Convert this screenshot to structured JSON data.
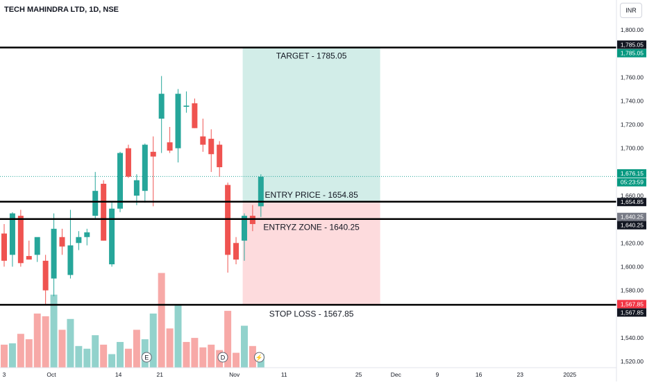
{
  "header": {
    "symbol": "TECH MAHINDRA LTD, 1D, NSE",
    "currency": "INR"
  },
  "annotations": {
    "target": "TARGET - 1785.05",
    "entry": "ENTRY PRICE - 1654.85",
    "entry_zone": "ENTRYZ ZONE - 1640.25",
    "stop_loss": "STOP LOSS - 1567.85"
  },
  "price_badges": [
    {
      "label": "1,785.05",
      "price": 1787.5,
      "bg": "#131722",
      "fg": "#ffffff"
    },
    {
      "label": "1,785.05",
      "price": 1780.3,
      "bg": "#089981",
      "fg": "#ffffff"
    },
    {
      "label": "1,676.15",
      "price": 1678.8,
      "bg": "#089981",
      "fg": "#ffffff"
    },
    {
      "label": "05:23:59",
      "price": 1671.3,
      "bg": "#089981",
      "fg": "#ffffff"
    },
    {
      "label": "1,654.85",
      "price": 1654.6,
      "bg": "#131722",
      "fg": "#ffffff"
    },
    {
      "label": "1,640.25",
      "price": 1642.0,
      "bg": "#787b86",
      "fg": "#ffffff"
    },
    {
      "label": "1,640.25",
      "price": 1635.0,
      "bg": "#131722",
      "fg": "#ffffff"
    },
    {
      "label": "1,567.85",
      "price": 1568.4,
      "bg": "#f23645",
      "fg": "#ffffff"
    },
    {
      "label": "1,567.85",
      "price": 1561.3,
      "bg": "#131722",
      "fg": "#ffffff"
    }
  ],
  "chart_data": {
    "type": "candlestick",
    "symbol": "TECH MAHINDRA LTD",
    "interval": "1D",
    "exchange": "NSE",
    "currency": "INR",
    "y_ticks": [
      1800,
      1780,
      1760,
      1740,
      1720,
      1700,
      1680,
      1660,
      1640,
      1620,
      1600,
      1580,
      1560,
      1540,
      1520
    ],
    "y_tick_labels": [
      "1,800.00",
      "1,780.00",
      "1,760.00",
      "1,740.00",
      "1,720.00",
      "1,700.00",
      "1,680.00",
      "1,660.00",
      "1,640.00",
      "1,620.00",
      "1,600.00",
      "1,580.00",
      "1,560.00",
      "1,540.00",
      "1,520.00"
    ],
    "x_tick_labels": [
      {
        "label": "3",
        "index": 0
      },
      {
        "label": "Oct",
        "index": 5.7
      },
      {
        "label": "14",
        "index": 13.8
      },
      {
        "label": "21",
        "index": 18.8
      },
      {
        "label": "Nov",
        "index": 27.8
      },
      {
        "label": "11",
        "index": 33.8
      },
      {
        "label": "25",
        "index": 42.8
      },
      {
        "label": "Dec",
        "index": 47.3
      },
      {
        "label": "9",
        "index": 52.3
      },
      {
        "label": "16",
        "index": 57.3
      },
      {
        "label": "23",
        "index": 62.3
      },
      {
        "label": "2025",
        "index": 68.3
      }
    ],
    "candles": [
      {
        "o": 1628,
        "h": 1636,
        "l": 1600,
        "c": 1605
      },
      {
        "o": 1610,
        "h": 1646,
        "l": 1600,
        "c": 1645
      },
      {
        "o": 1643,
        "h": 1648,
        "l": 1600,
        "c": 1603
      },
      {
        "o": 1609,
        "h": 1622,
        "l": 1606,
        "c": 1606
      },
      {
        "o": 1610,
        "h": 1624,
        "l": 1604,
        "c": 1625
      },
      {
        "o": 1605,
        "h": 1610,
        "l": 1568,
        "c": 1580
      },
      {
        "o": 1590,
        "h": 1645,
        "l": 1575,
        "c": 1632
      },
      {
        "o": 1625,
        "h": 1632,
        "l": 1610,
        "c": 1617
      },
      {
        "o": 1593,
        "h": 1648,
        "l": 1590,
        "c": 1618
      },
      {
        "o": 1620,
        "h": 1630,
        "l": 1614,
        "c": 1625
      },
      {
        "o": 1625,
        "h": 1632,
        "l": 1618,
        "c": 1629
      },
      {
        "o": 1643,
        "h": 1680,
        "l": 1640,
        "c": 1664
      },
      {
        "o": 1670,
        "h": 1673,
        "l": 1622,
        "c": 1622
      },
      {
        "o": 1602,
        "h": 1655,
        "l": 1600,
        "c": 1649
      },
      {
        "o": 1649,
        "h": 1697,
        "l": 1646,
        "c": 1696
      },
      {
        "o": 1700,
        "h": 1703,
        "l": 1675,
        "c": 1676
      },
      {
        "o": 1660,
        "h": 1678,
        "l": 1652,
        "c": 1673
      },
      {
        "o": 1664,
        "h": 1704,
        "l": 1654,
        "c": 1703
      },
      {
        "o": 1697,
        "h": 1710,
        "l": 1651,
        "c": 1693
      },
      {
        "o": 1725,
        "h": 1761,
        "l": 1696,
        "c": 1746
      },
      {
        "o": 1705,
        "h": 1718,
        "l": 1696,
        "c": 1698
      },
      {
        "o": 1700,
        "h": 1750,
        "l": 1688,
        "c": 1746
      },
      {
        "o": 1735,
        "h": 1748,
        "l": 1730,
        "c": 1736
      },
      {
        "o": 1738,
        "h": 1742,
        "l": 1717,
        "c": 1717
      },
      {
        "o": 1710,
        "h": 1725,
        "l": 1697,
        "c": 1703
      },
      {
        "o": 1708,
        "h": 1716,
        "l": 1680,
        "c": 1695
      },
      {
        "o": 1703,
        "h": 1706,
        "l": 1676,
        "c": 1684
      },
      {
        "o": 1669,
        "h": 1671,
        "l": 1595,
        "c": 1610
      },
      {
        "o": 1620,
        "h": 1625,
        "l": 1602,
        "c": 1606
      },
      {
        "o": 1622,
        "h": 1645,
        "l": 1605,
        "c": 1643
      },
      {
        "o": 1643,
        "h": 1652,
        "l": 1630,
        "c": 1636
      },
      {
        "o": 1651,
        "h": 1678,
        "l": 1642,
        "c": 1676
      }
    ],
    "volume": [
      {
        "v": 8.5,
        "dir": "down"
      },
      {
        "v": 9.0,
        "dir": "up"
      },
      {
        "v": 12.5,
        "dir": "down"
      },
      {
        "v": 10.5,
        "dir": "down"
      },
      {
        "v": 20.0,
        "dir": "down"
      },
      {
        "v": 19.0,
        "dir": "down"
      },
      {
        "v": 27.0,
        "dir": "up"
      },
      {
        "v": 14.0,
        "dir": "down"
      },
      {
        "v": 18.0,
        "dir": "up"
      },
      {
        "v": 8.0,
        "dir": "up"
      },
      {
        "v": 7.0,
        "dir": "up"
      },
      {
        "v": 12.0,
        "dir": "up"
      },
      {
        "v": 8.5,
        "dir": "down"
      },
      {
        "v": 5.0,
        "dir": "up"
      },
      {
        "v": 9.5,
        "dir": "up"
      },
      {
        "v": 7.0,
        "dir": "down"
      },
      {
        "v": 14.0,
        "dir": "down"
      },
      {
        "v": 10.5,
        "dir": "up"
      },
      {
        "v": 20.0,
        "dir": "up"
      },
      {
        "v": 35.0,
        "dir": "down"
      },
      {
        "v": 14.5,
        "dir": "down"
      },
      {
        "v": 23.0,
        "dir": "up"
      },
      {
        "v": 9.5,
        "dir": "down"
      },
      {
        "v": 11.0,
        "dir": "down"
      },
      {
        "v": 7.5,
        "dir": "down"
      },
      {
        "v": 8.5,
        "dir": "down"
      },
      {
        "v": 6.5,
        "dir": "down"
      },
      {
        "v": 21.0,
        "dir": "down"
      },
      {
        "v": 5.5,
        "dir": "down"
      },
      {
        "v": 15.5,
        "dir": "up"
      },
      {
        "v": 8.0,
        "dir": "down"
      },
      {
        "v": 5.0,
        "dir": "up"
      }
    ],
    "event_markers": [
      {
        "label": "E",
        "index": 17.2
      },
      {
        "label": "D",
        "index": 26.4
      },
      {
        "label": "⚡",
        "index": 30.8
      }
    ],
    "horizontal_lines": [
      1785.05,
      1654.85,
      1640.25,
      1567.85
    ],
    "last_price_line": 1676.15,
    "position": {
      "start_index": 28.8,
      "end_index": 45.4,
      "entry": 1654.85,
      "target": 1785.05,
      "stop": 1567.85
    },
    "colors": {
      "up": "#26a69a",
      "down": "#ef5350",
      "volume_up": "#92d2cc",
      "volume_down": "#f7a9a7",
      "target_zone": "rgba(8,153,129,0.18)",
      "stop_zone": "rgba(242,54,69,0.18)",
      "axis_text": "#131722",
      "grid": "#f0f3fa"
    },
    "ylim": [
      1515,
      1805
    ]
  }
}
